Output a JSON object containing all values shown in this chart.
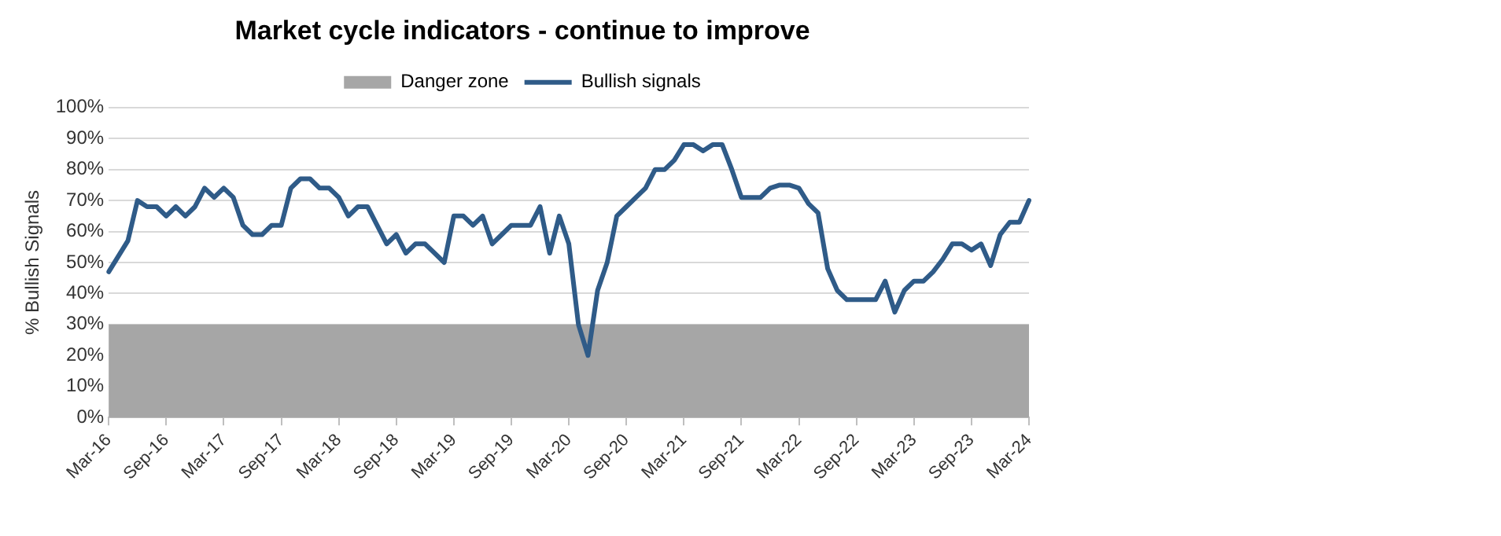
{
  "chart_data": {
    "type": "line",
    "title": "Market cycle indicators - continue to improve",
    "ylabel": "% Bullish Signals",
    "categories": [
      "Mar-16",
      null,
      null,
      null,
      null,
      null,
      "Sep-16",
      null,
      null,
      null,
      null,
      null,
      "Mar-17",
      null,
      null,
      null,
      null,
      null,
      "Sep-17",
      null,
      null,
      null,
      null,
      null,
      "Mar-18",
      null,
      null,
      null,
      null,
      null,
      "Sep-18",
      null,
      null,
      null,
      null,
      null,
      "Mar-19",
      null,
      null,
      null,
      null,
      null,
      "Sep-19",
      null,
      null,
      null,
      null,
      null,
      "Mar-20",
      null,
      null,
      null,
      null,
      null,
      "Sep-20",
      null,
      null,
      null,
      null,
      null,
      "Mar-21",
      null,
      null,
      null,
      null,
      null,
      "Sep-21",
      null,
      null,
      null,
      null,
      null,
      "Mar-22",
      null,
      null,
      null,
      null,
      null,
      "Sep-22",
      null,
      null,
      null,
      null,
      null,
      "Mar-23",
      null,
      null,
      null,
      null,
      null,
      "Sep-23",
      null,
      null,
      null,
      null,
      null,
      "Mar-24"
    ],
    "series": [
      {
        "name": "Bullish signals",
        "color": "#2f5b88",
        "values": [
          47,
          52,
          57,
          70,
          68,
          68,
          65,
          68,
          65,
          68,
          74,
          71,
          74,
          71,
          62,
          59,
          59,
          62,
          62,
          74,
          77,
          77,
          74,
          74,
          71,
          65,
          68,
          68,
          62,
          56,
          59,
          53,
          56,
          56,
          53,
          50,
          65,
          65,
          62,
          65,
          56,
          59,
          62,
          62,
          62,
          68,
          53,
          65,
          56,
          30,
          20,
          41,
          50,
          65,
          68,
          71,
          74,
          80,
          80,
          83,
          88,
          88,
          86,
          88,
          88,
          80,
          71,
          71,
          71,
          74,
          75,
          75,
          74,
          69,
          66,
          48,
          41,
          38,
          38,
          38,
          38,
          44,
          34,
          41,
          44,
          44,
          47,
          51,
          56,
          56,
          54,
          56,
          49,
          59,
          63,
          63,
          70
        ]
      }
    ],
    "bands": [
      {
        "axis": "y",
        "from": 0,
        "to": 30,
        "label": "Danger zone",
        "color": "#a6a6a6"
      }
    ],
    "ylim": [
      0,
      100
    ],
    "yticks": [
      {
        "value": 0,
        "label": "0%"
      },
      {
        "value": 10,
        "label": "10%"
      },
      {
        "value": 20,
        "label": "20%"
      },
      {
        "value": 30,
        "label": "30%"
      },
      {
        "value": 40,
        "label": "40%"
      },
      {
        "value": 50,
        "label": "50%"
      },
      {
        "value": 60,
        "label": "60%"
      },
      {
        "value": 70,
        "label": "70%"
      },
      {
        "value": 80,
        "label": "80%"
      },
      {
        "value": 90,
        "label": "90%"
      },
      {
        "value": 100,
        "label": "100%"
      }
    ],
    "grid": "y",
    "legend": "top",
    "marker": "none",
    "line_style": "solid"
  }
}
